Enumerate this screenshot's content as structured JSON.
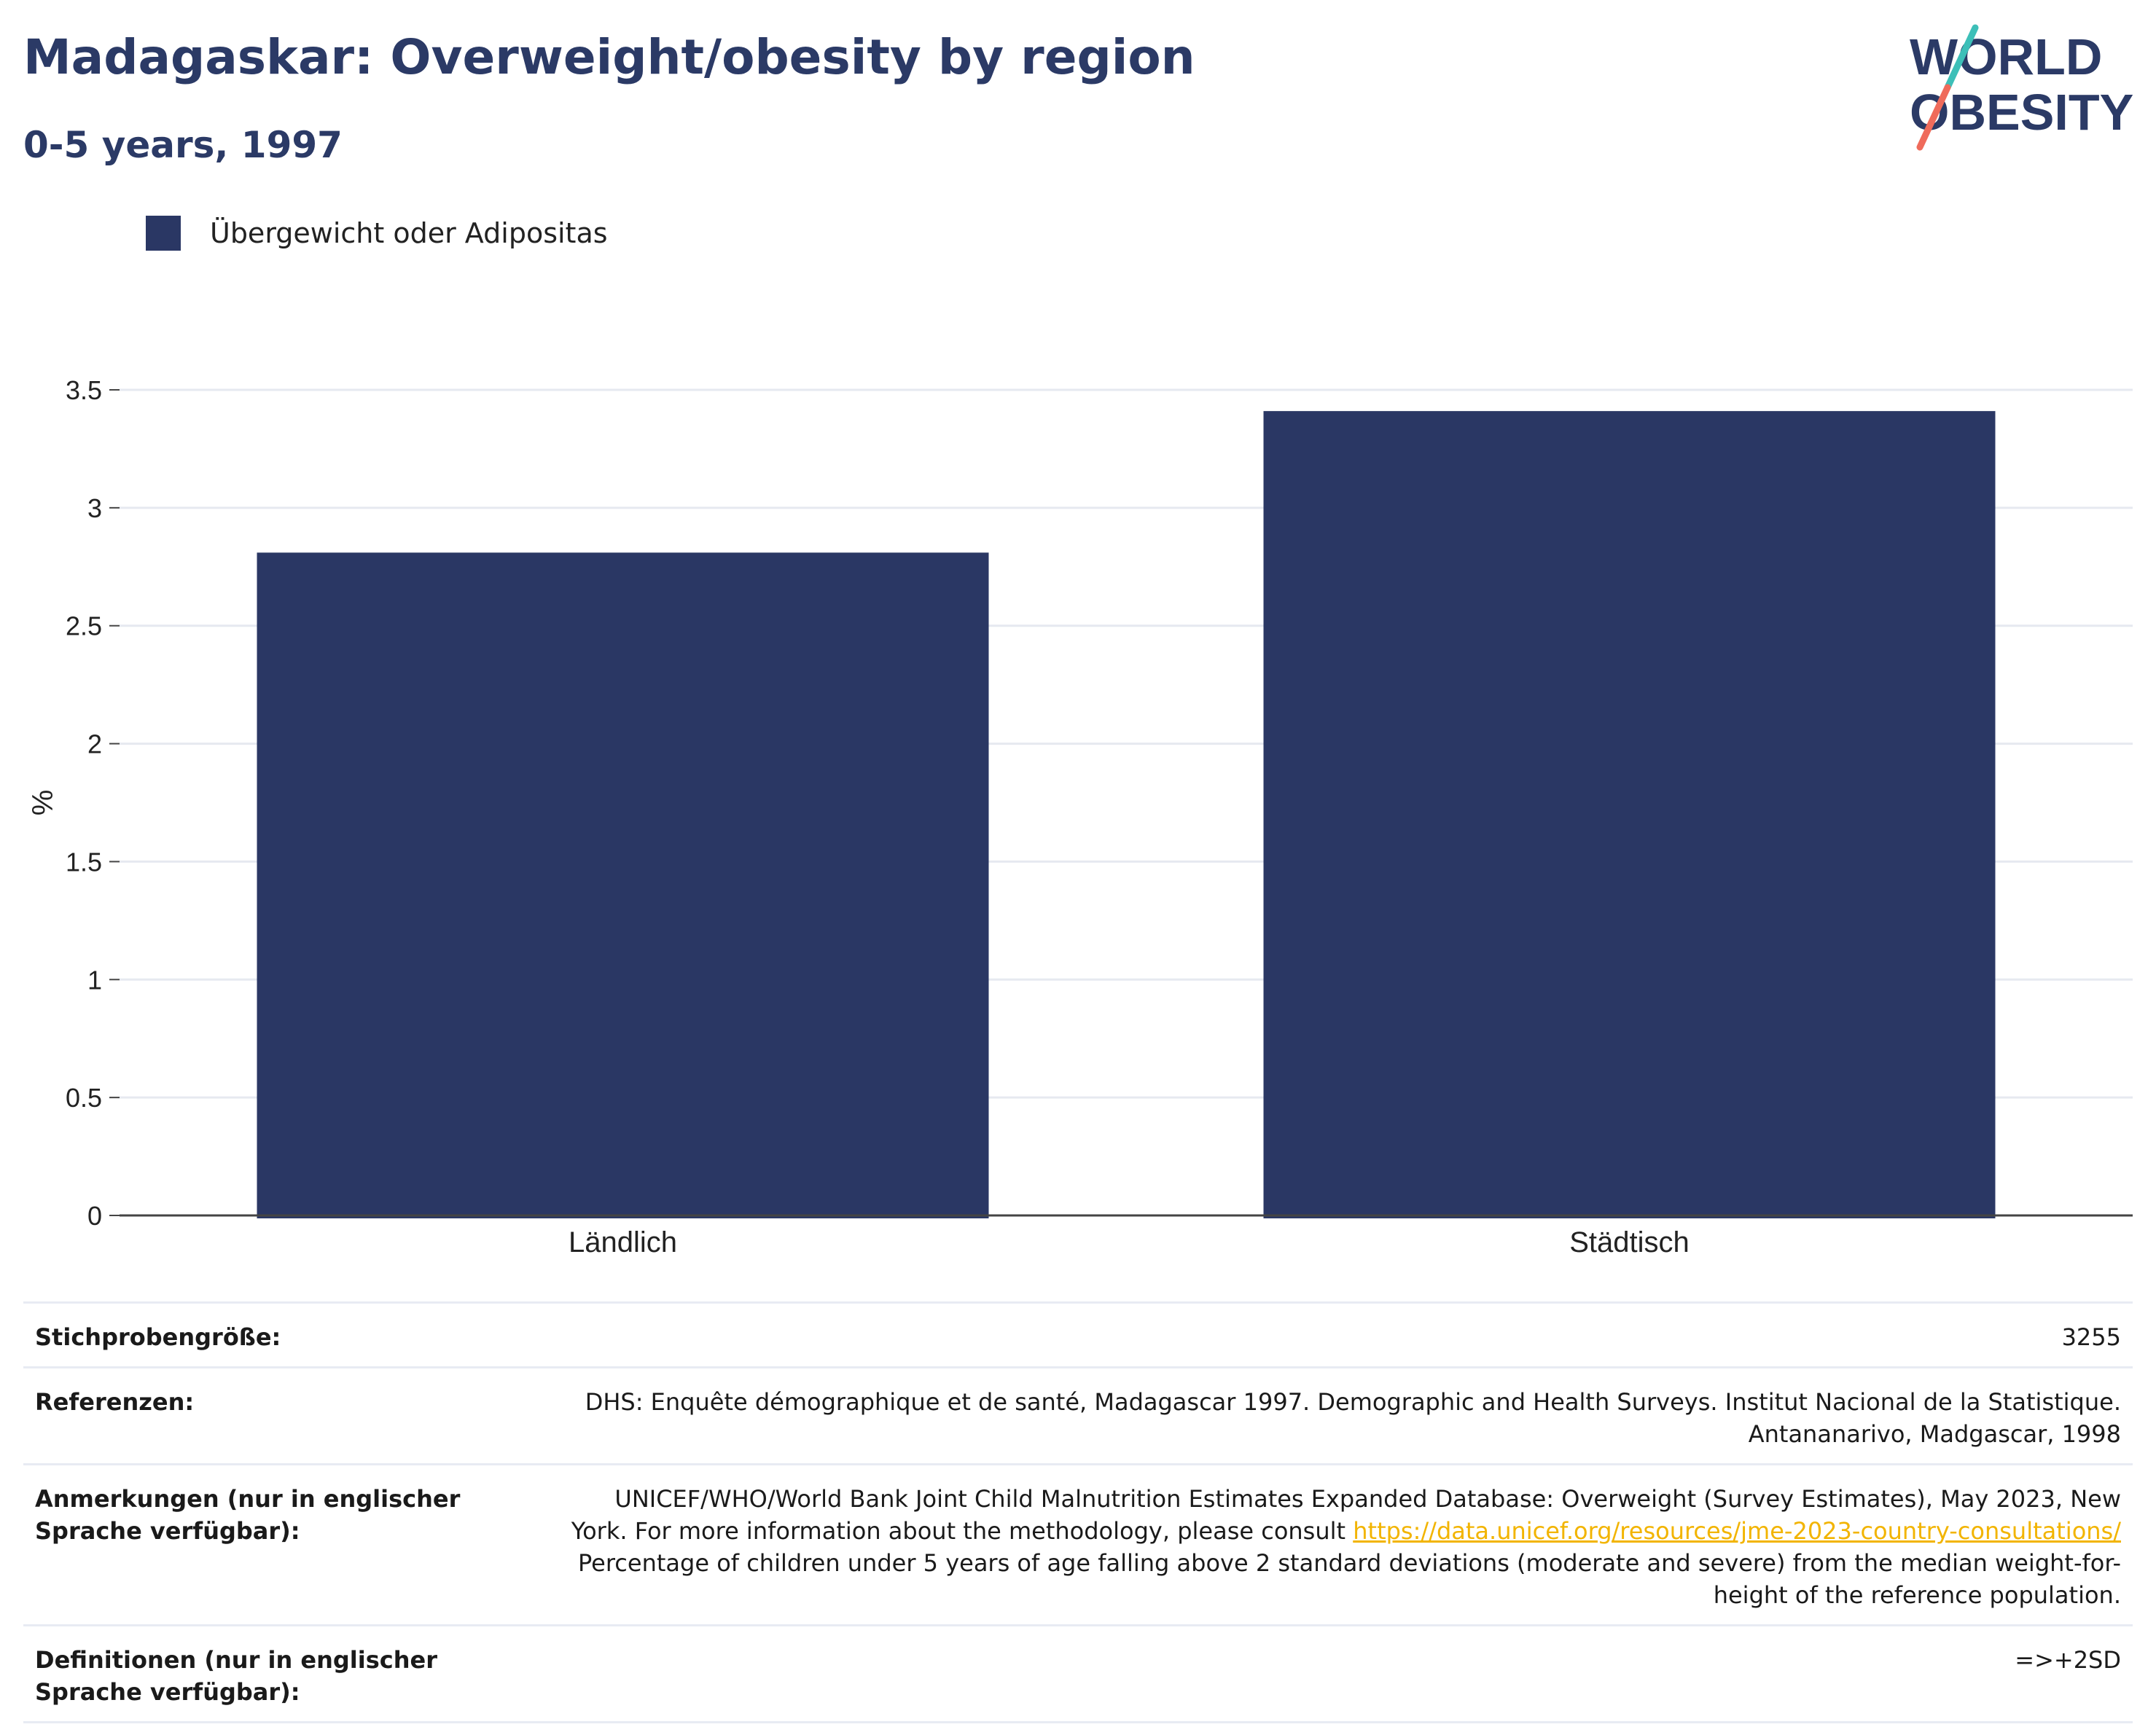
{
  "header": {
    "title": "Madagaskar: Overweight/obesity by region",
    "subtitle": "0-5 years, 1997"
  },
  "logo": {
    "line1": "WORLD",
    "line2": "OBESITY"
  },
  "colors": {
    "bar": "#2a3764",
    "title": "#2b3a66",
    "grid": "#e6e9f0",
    "link": "#f2b400"
  },
  "chart_data": {
    "type": "bar",
    "categories": [
      "Ländlich",
      "Städtisch"
    ],
    "series": [
      {
        "name": "Übergewicht oder Adipositas",
        "values": [
          2.81,
          3.41
        ]
      }
    ],
    "ylabel": "%",
    "ylim": [
      0,
      3.5
    ],
    "yticks": [
      0,
      0.5,
      1,
      1.5,
      2,
      2.5,
      3,
      3.5
    ],
    "ytick_labels": [
      "0",
      "0.5",
      "1",
      "1.5",
      "2",
      "2.5",
      "3",
      "3.5"
    ],
    "grid": true,
    "legend_placement": "top-left"
  },
  "meta": {
    "sample_size_label": "Stichprobengröße:",
    "sample_size_value": "3255",
    "references_label": "Referenzen:",
    "references_value": "DHS: Enquête démographique et de santé, Madagascar 1997. Demographic and Health Surveys. Institut Nacional de la Statistique. Antananarivo, Madgascar, 1998",
    "notes_label": "Anmerkungen (nur in englischer Sprache verfügbar):",
    "notes_text_before": "UNICEF/WHO/World Bank Joint Child Malnutrition Estimates Expanded Database: Overweight (Survey Estimates), May 2023, New York. For more information about the methodology, please consult ",
    "notes_link": "https://data.unicef.org/resources/jme-2023-country-consultations/",
    "notes_text_after": " Percentage of children under 5 years of age falling above 2 standard deviations (moderate and severe) from the median weight-for-height of the reference population.",
    "definitions_label": "Definitionen (nur in englischer Sprache verfügbar):",
    "definitions_value": "=>+2SD"
  }
}
